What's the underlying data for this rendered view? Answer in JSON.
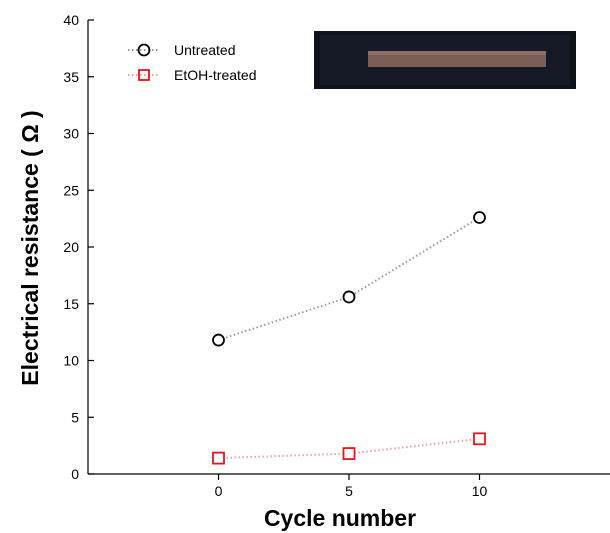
{
  "chart_data": {
    "type": "scatter",
    "xlabel": "Cycle number",
    "ylabel": "Electrical resistance ( Ω )",
    "xlim": [
      -5,
      15
    ],
    "ylim": [
      0,
      40
    ],
    "x_ticks": [
      0,
      5,
      10
    ],
    "y_ticks": [
      0,
      5,
      10,
      15,
      20,
      25,
      30,
      35,
      40
    ],
    "grid": false,
    "legend_position": "top-left",
    "series": [
      {
        "name": "Untreated",
        "marker": "circle",
        "color": "#000000",
        "line_color": "#9a9a9a",
        "x": [
          0,
          5,
          10
        ],
        "y": [
          11.8,
          15.6,
          22.6
        ]
      },
      {
        "name": "EtOH-treated",
        "marker": "square",
        "color": "#e8141c",
        "line_color": "#f0a0a0",
        "x": [
          0,
          5,
          10
        ],
        "y": [
          1.4,
          1.8,
          3.1
        ]
      }
    ],
    "inset": "photo-of-sample-strip"
  }
}
